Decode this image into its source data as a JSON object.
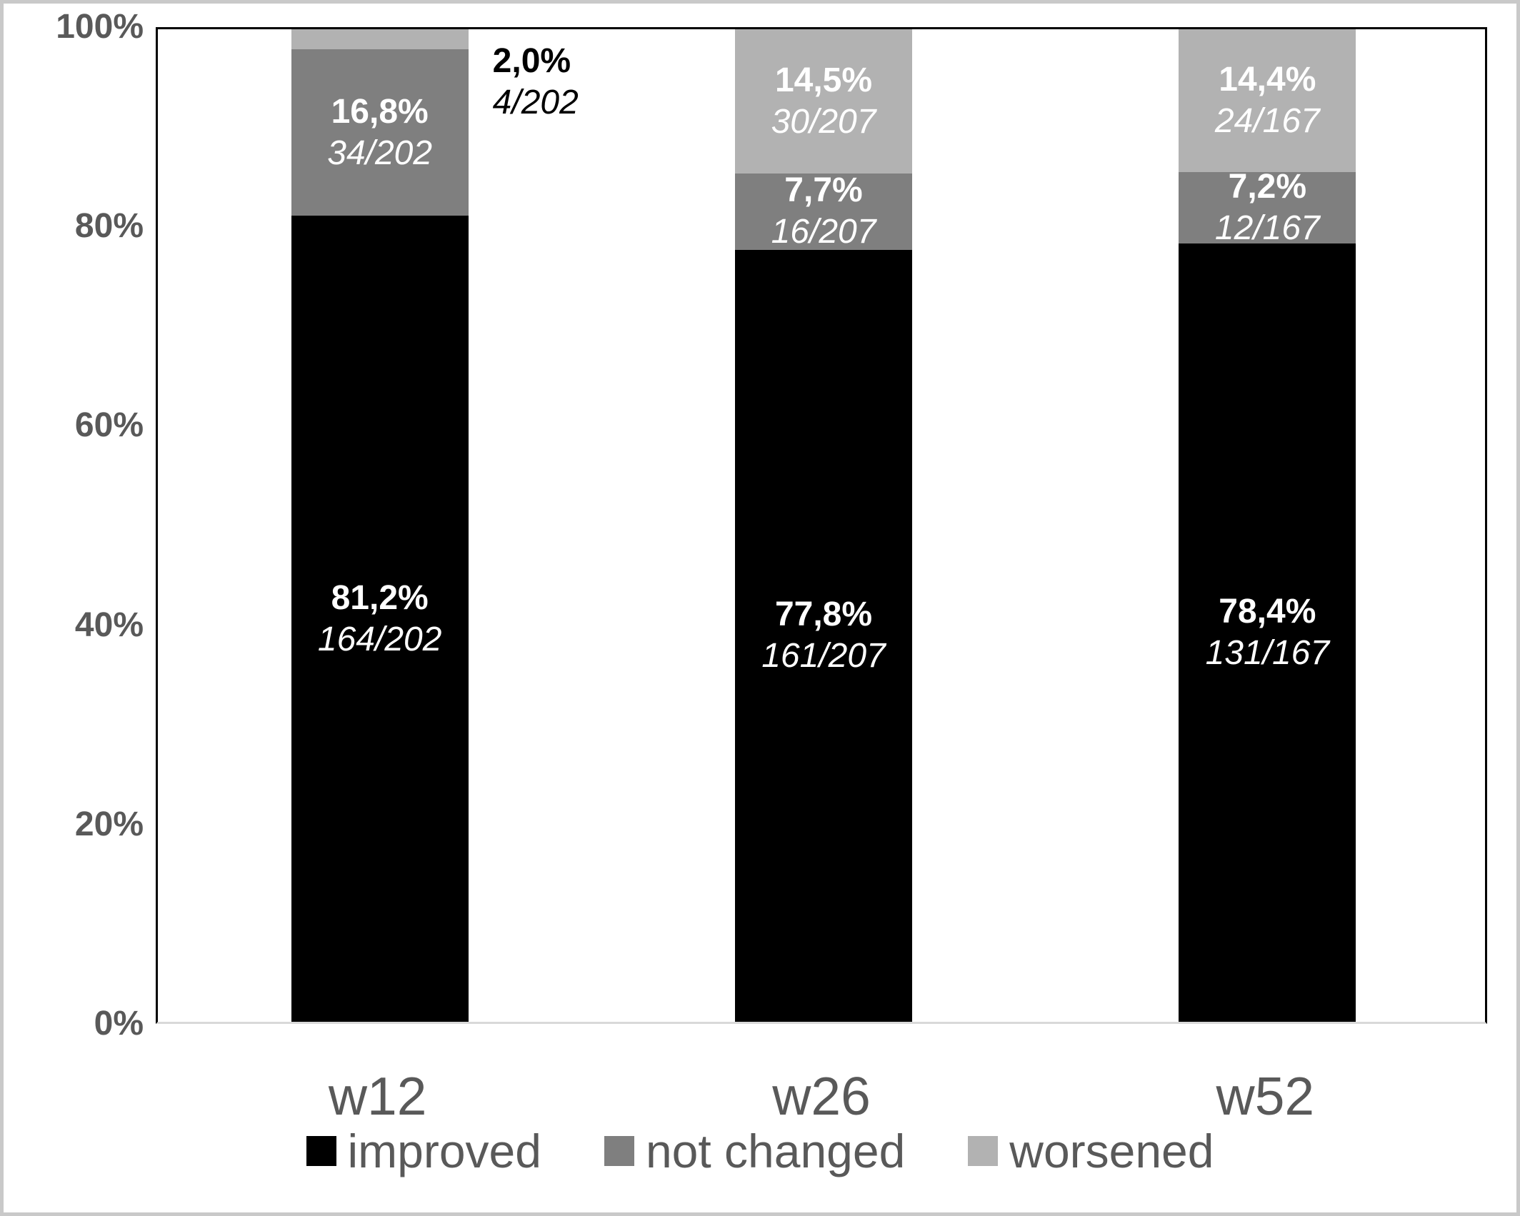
{
  "figure": {
    "frame_color": "#c9c9c9",
    "background": "#ffffff",
    "axis_line_color": "#000000",
    "baseline_color": "#d9d9d9",
    "label_gray": "#595959"
  },
  "chart_data": {
    "type": "bar",
    "stacked": true,
    "grid": false,
    "ylim": [
      0,
      100
    ],
    "y_ticks": [
      {
        "label": "0%",
        "value": 0
      },
      {
        "label": "20%",
        "value": 20
      },
      {
        "label": "40%",
        "value": 40
      },
      {
        "label": "60%",
        "value": 60
      },
      {
        "label": "80%",
        "value": 80
      },
      {
        "label": "100%",
        "value": 100
      }
    ],
    "categories": [
      "w12",
      "w26",
      "w52"
    ],
    "series": [
      {
        "name": "improved",
        "color": "#000000",
        "values": [
          81.2,
          77.8,
          78.4
        ]
      },
      {
        "name": "not changed",
        "color": "#7f7f7f",
        "values": [
          16.8,
          7.7,
          7.2
        ]
      },
      {
        "name": "worsened",
        "color": "#b2b2b2",
        "values": [
          2.0,
          14.5,
          14.4
        ]
      }
    ],
    "bars": [
      {
        "category": "w12",
        "segments": [
          {
            "series": "improved",
            "value": 81.2,
            "pct_label": "81,2%",
            "count_label": "164/202",
            "label_placement": "inside",
            "label_color": "#ffffff"
          },
          {
            "series": "not changed",
            "value": 16.8,
            "pct_label": "16,8%",
            "count_label": "34/202",
            "label_placement": "inside",
            "label_color": "#ffffff"
          },
          {
            "series": "worsened",
            "value": 2.0,
            "pct_label": "2,0%",
            "count_label": "4/202",
            "label_placement": "outside-right",
            "label_color": "#000000"
          }
        ]
      },
      {
        "category": "w26",
        "segments": [
          {
            "series": "improved",
            "value": 77.8,
            "pct_label": "77,8%",
            "count_label": "161/207",
            "label_placement": "inside",
            "label_color": "#ffffff"
          },
          {
            "series": "not changed",
            "value": 7.7,
            "pct_label": "7,7%",
            "count_label": "16/207",
            "label_placement": "inside",
            "label_color": "#ffffff"
          },
          {
            "series": "worsened",
            "value": 14.5,
            "pct_label": "14,5%",
            "count_label": "30/207",
            "label_placement": "inside",
            "label_color": "#ffffff"
          }
        ]
      },
      {
        "category": "w52",
        "segments": [
          {
            "series": "improved",
            "value": 78.4,
            "pct_label": "78,4%",
            "count_label": "131/167",
            "label_placement": "inside",
            "label_color": "#ffffff"
          },
          {
            "series": "not changed",
            "value": 7.2,
            "pct_label": "7,2%",
            "count_label": "12/167",
            "label_placement": "inside",
            "label_color": "#ffffff"
          },
          {
            "series": "worsened",
            "value": 14.4,
            "pct_label": "14,4%",
            "count_label": "24/167",
            "label_placement": "inside",
            "label_color": "#ffffff"
          }
        ]
      }
    ],
    "legend": [
      {
        "label": "improved",
        "color": "#000000"
      },
      {
        "label": "not changed",
        "color": "#7f7f7f"
      },
      {
        "label": "worsened",
        "color": "#b2b2b2"
      }
    ],
    "legend_position": "bottom"
  }
}
